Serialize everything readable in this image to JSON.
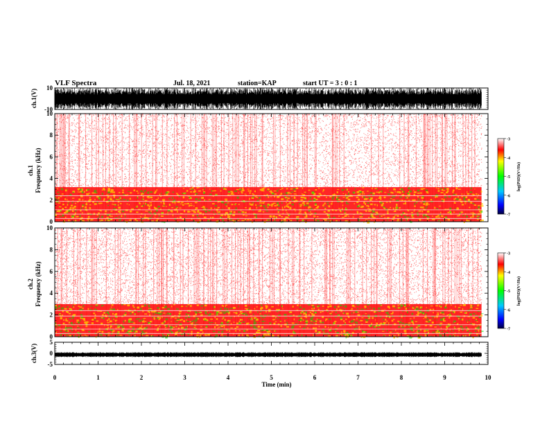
{
  "header": {
    "title": "VLF Spectra",
    "date": "Jul. 18, 2021",
    "station": "station=KAP",
    "start": "start UT =  3 : 0 : 1"
  },
  "colors": {
    "spectrogram_bg": "#ffffff",
    "low": "#ff0000",
    "mid": "#ffcc00",
    "high": "#00e000",
    "wave": "#000000"
  },
  "chart_data": [
    {
      "type": "line",
      "name": "ch.1 waveform",
      "ylabel": "ch.1(V)",
      "ylim": [
        -10,
        10
      ],
      "yticks": [
        "10",
        "-10"
      ],
      "xlim": [
        0,
        10
      ],
      "x_extent_min": 9.85
    },
    {
      "type": "heatmap",
      "name": "ch.1 spectrogram",
      "ylabel": "ch.1\nFrequency (kHz)",
      "ylabel_lines": [
        "ch.1",
        "Frequency (kHz)"
      ],
      "ylim": [
        0,
        10
      ],
      "yticks": [
        "0",
        "2",
        "4",
        "6",
        "8",
        "10"
      ],
      "xlim": [
        0,
        10
      ],
      "colorbar": {
        "label": "log(PSD)(V²/Hz)",
        "range": [
          -7,
          -3
        ],
        "ticks": [
          "-3",
          "-4",
          "-5",
          "-6",
          "-7"
        ]
      },
      "features": [
        {
          "band_khz": [
            0,
            3.2
          ],
          "level": "strong"
        },
        {
          "band_khz": [
            3.2,
            10
          ],
          "level": "weak"
        }
      ]
    },
    {
      "type": "heatmap",
      "name": "ch.2 spectrogram",
      "ylabel": "ch.2\nFrequency (kHz)",
      "ylabel_lines": [
        "ch.2",
        "Frequency (kHz)"
      ],
      "ylim": [
        0,
        10
      ],
      "yticks": [
        "0",
        "2",
        "4",
        "6",
        "8",
        "10"
      ],
      "xlim": [
        0,
        10
      ],
      "colorbar": {
        "label": "log(PSD)(V²/Hz)",
        "range": [
          -7,
          -3
        ],
        "ticks": [
          "-3",
          "-4",
          "-5",
          "-6",
          "-7"
        ]
      },
      "features": [
        {
          "band_khz": [
            0,
            3.0
          ],
          "level": "strong"
        },
        {
          "band_khz": [
            3.0,
            10
          ],
          "level": "weak"
        }
      ]
    },
    {
      "type": "line",
      "name": "ch.3 waveform",
      "ylabel": "ch.3(V)",
      "ylim": [
        -5,
        5
      ],
      "yticks": [
        "5",
        "0",
        "-5"
      ],
      "xlim": [
        0,
        10
      ],
      "xticks": [
        "0",
        "1",
        "2",
        "3",
        "4",
        "5",
        "6",
        "7",
        "8",
        "9",
        "10"
      ],
      "xlabel": "Time (min)",
      "x_extent_min": 9.85
    }
  ]
}
